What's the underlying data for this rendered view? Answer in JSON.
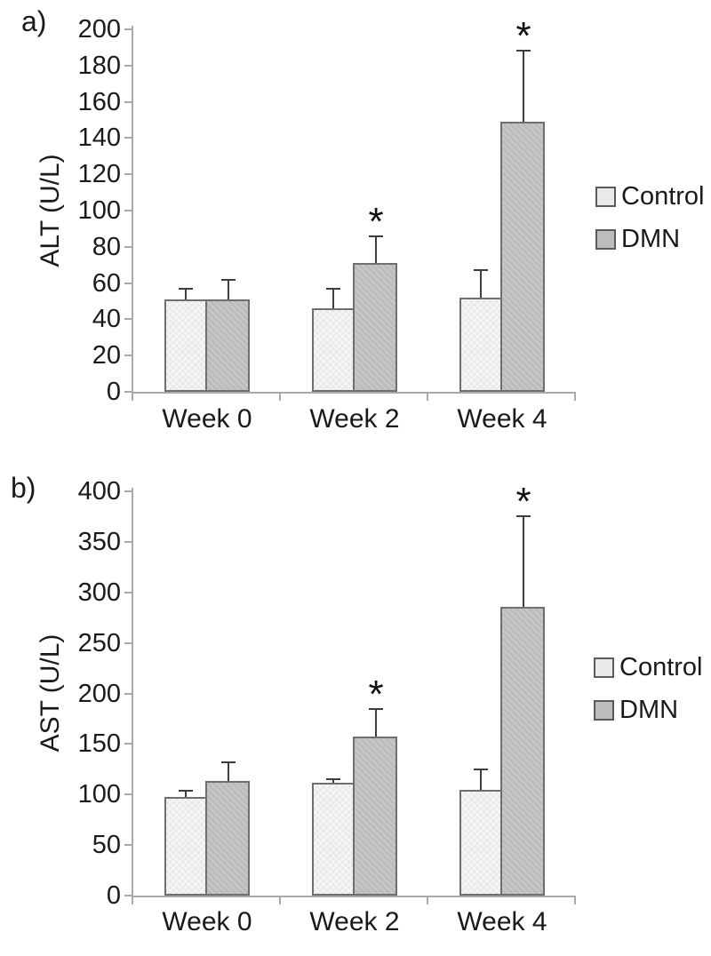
{
  "page": {
    "background": "#ffffff"
  },
  "colors": {
    "control_fill": "#e9e9e9",
    "dmn_fill": "#bcbcbc",
    "bar_border": "#6f6f6f",
    "axis": "#a9a9a9",
    "error_bar": "#3d3d3d",
    "text": "#1a1a1a",
    "legend_swatch_border": "#5a5a5a",
    "significance_marker": "#111111"
  },
  "legend": {
    "position": "right",
    "items": [
      {
        "label": "Control",
        "color_key": "control_fill"
      },
      {
        "label": "DMN",
        "color_key": "dmn_fill"
      }
    ]
  },
  "chart_data": [
    {
      "type": "bar",
      "panel_label": "a)",
      "title": "",
      "xlabel": "",
      "ylabel": "ALT (U/L)",
      "categories": [
        "Week 0",
        "Week 2",
        "Week 4"
      ],
      "ylim": [
        0,
        200
      ],
      "ytick_step": 20,
      "grid": false,
      "error_bars": true,
      "legend_position": "right",
      "series": [
        {
          "name": "Control",
          "values": [
            51,
            46,
            52
          ],
          "errors": [
            6,
            11,
            15
          ],
          "significance": [
            "",
            "",
            ""
          ]
        },
        {
          "name": "DMN",
          "values": [
            51,
            71,
            149
          ],
          "errors": [
            11,
            15,
            39
          ],
          "significance": [
            "",
            "*",
            "*"
          ]
        }
      ]
    },
    {
      "type": "bar",
      "panel_label": "b)",
      "title": "",
      "xlabel": "",
      "ylabel": "AST (U/L)",
      "categories": [
        "Week 0",
        "Week 2",
        "Week 4"
      ],
      "ylim": [
        0,
        400
      ],
      "ytick_step": 50,
      "grid": false,
      "error_bars": true,
      "legend_position": "right",
      "series": [
        {
          "name": "Control",
          "values": [
            98,
            112,
            105
          ],
          "errors": [
            6,
            3,
            20
          ],
          "significance": [
            "",
            "",
            ""
          ]
        },
        {
          "name": "DMN",
          "values": [
            113,
            157,
            286
          ],
          "errors": [
            19,
            28,
            89
          ],
          "significance": [
            "",
            "*",
            "*"
          ]
        }
      ]
    }
  ]
}
